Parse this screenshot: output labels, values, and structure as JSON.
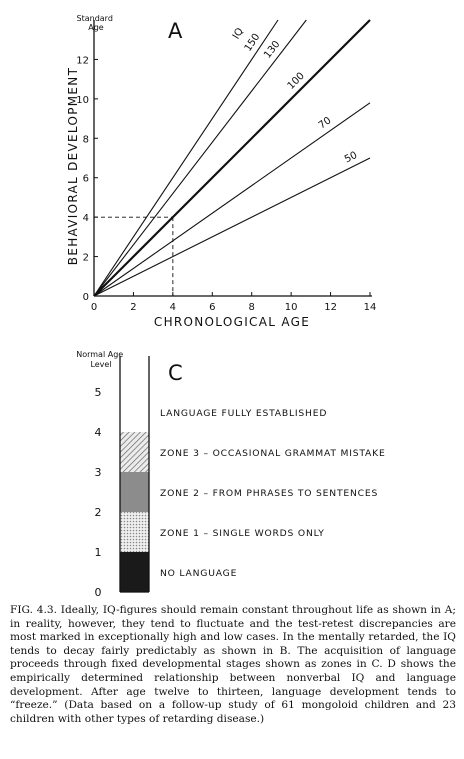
{
  "chart_data": [
    {
      "type": "line",
      "panel_label": "A",
      "xlabel": "CHRONOLOGICAL AGE",
      "ylabel": "BEHAVIORAL DEVELOPMENT",
      "ylabel_top": "Standard Age",
      "series_prefix": "IQ",
      "xlim": [
        0,
        14
      ],
      "ylim": [
        0,
        14
      ],
      "x_ticks": [
        0,
        2,
        4,
        6,
        8,
        10,
        12,
        14
      ],
      "y_ticks": [
        0,
        2,
        4,
        6,
        8,
        10,
        12
      ],
      "grid": false,
      "series": [
        {
          "name": "150",
          "iq": 150,
          "bold": false
        },
        {
          "name": "130",
          "iq": 130,
          "bold": false
        },
        {
          "name": "100",
          "iq": 100,
          "bold": true
        },
        {
          "name": "70",
          "iq": 70,
          "bold": false
        },
        {
          "name": "50",
          "iq": 50,
          "bold": false
        }
      ],
      "reference_point": {
        "x": 4,
        "y": 4
      }
    },
    {
      "type": "bar",
      "panel_label": "C",
      "ylabel_top": "Normal Age Level",
      "ylim": [
        0,
        6
      ],
      "y_ticks": [
        0,
        1,
        2,
        3,
        4,
        5
      ],
      "zones": [
        {
          "label": "NO LANGUAGE",
          "from": 0,
          "to": 1,
          "fill": "#1a1a1a"
        },
        {
          "label": "ZONE 1 – SINGLE WORDS ONLY",
          "from": 1,
          "to": 2,
          "fill": "#d2d2d2"
        },
        {
          "label": "ZONE 2 – FROM PHRASES TO SENTENCES",
          "from": 2,
          "to": 3,
          "fill": "#9a9a9a"
        },
        {
          "label": "ZONE 3 – OCCASIONAL GRAMMAT MISTAKE",
          "from": 3,
          "to": 4,
          "fill": "#bdbdbd"
        },
        {
          "label": "LANGUAGE FULLY ESTABLISHED",
          "from": 4,
          "to": 5,
          "fill": "none"
        }
      ]
    }
  ],
  "caption": "FIG. 4.3. Ideally, IQ-figures should remain constant throughout life as shown in A; in reality, however, they tend to fluctuate and the test-retest discrepancies are most marked in exceptionally high and low cases. In the mentally retarded, the IQ tends to decay fairly predictably as shown in B. The acquisition of language proceeds through fixed developmental stages shown as zones in C. D shows the empirically determined relationship between nonverbal IQ and language development. After age twelve to thirteen, language development tends to “freeze.” (Data based on a follow-up study of 61 mongoloid children and 23 children with other types of retarding disease.)"
}
